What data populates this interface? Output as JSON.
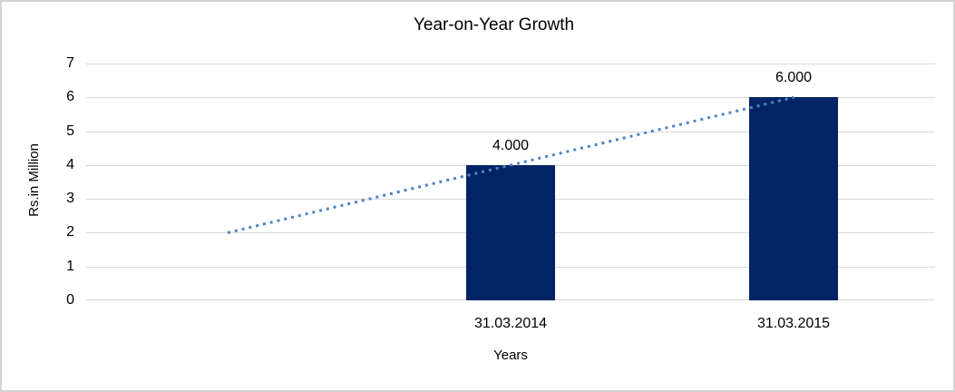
{
  "chart": {
    "title": "Year-on-Year Growth",
    "y_axis_title": "Rs.in Million",
    "x_axis_title": "Years"
  },
  "chart_data": {
    "type": "bar",
    "title": "Year-on-Year Growth",
    "xlabel": "Years",
    "ylabel": "Rs.in Million",
    "categories": [
      "31.03.2014",
      "31.03.2015"
    ],
    "series": [
      {
        "name": "Rs.in Million",
        "values": [
          4,
          6
        ]
      }
    ],
    "data_labels": [
      "4.000",
      "6.000"
    ],
    "ylim": [
      0,
      7
    ],
    "yticks": [
      0,
      1,
      2,
      3,
      4,
      5,
      6,
      7
    ],
    "grid": true,
    "legend": false,
    "trendline": {
      "type": "linear",
      "style": "dotted",
      "start_value": 2,
      "end_value": 6
    },
    "colors": {
      "bar": "#022366",
      "trendline": "#4F84C4",
      "gridline": "#d9d9d9",
      "border": "#d3d3d3",
      "text": "#000000"
    }
  }
}
